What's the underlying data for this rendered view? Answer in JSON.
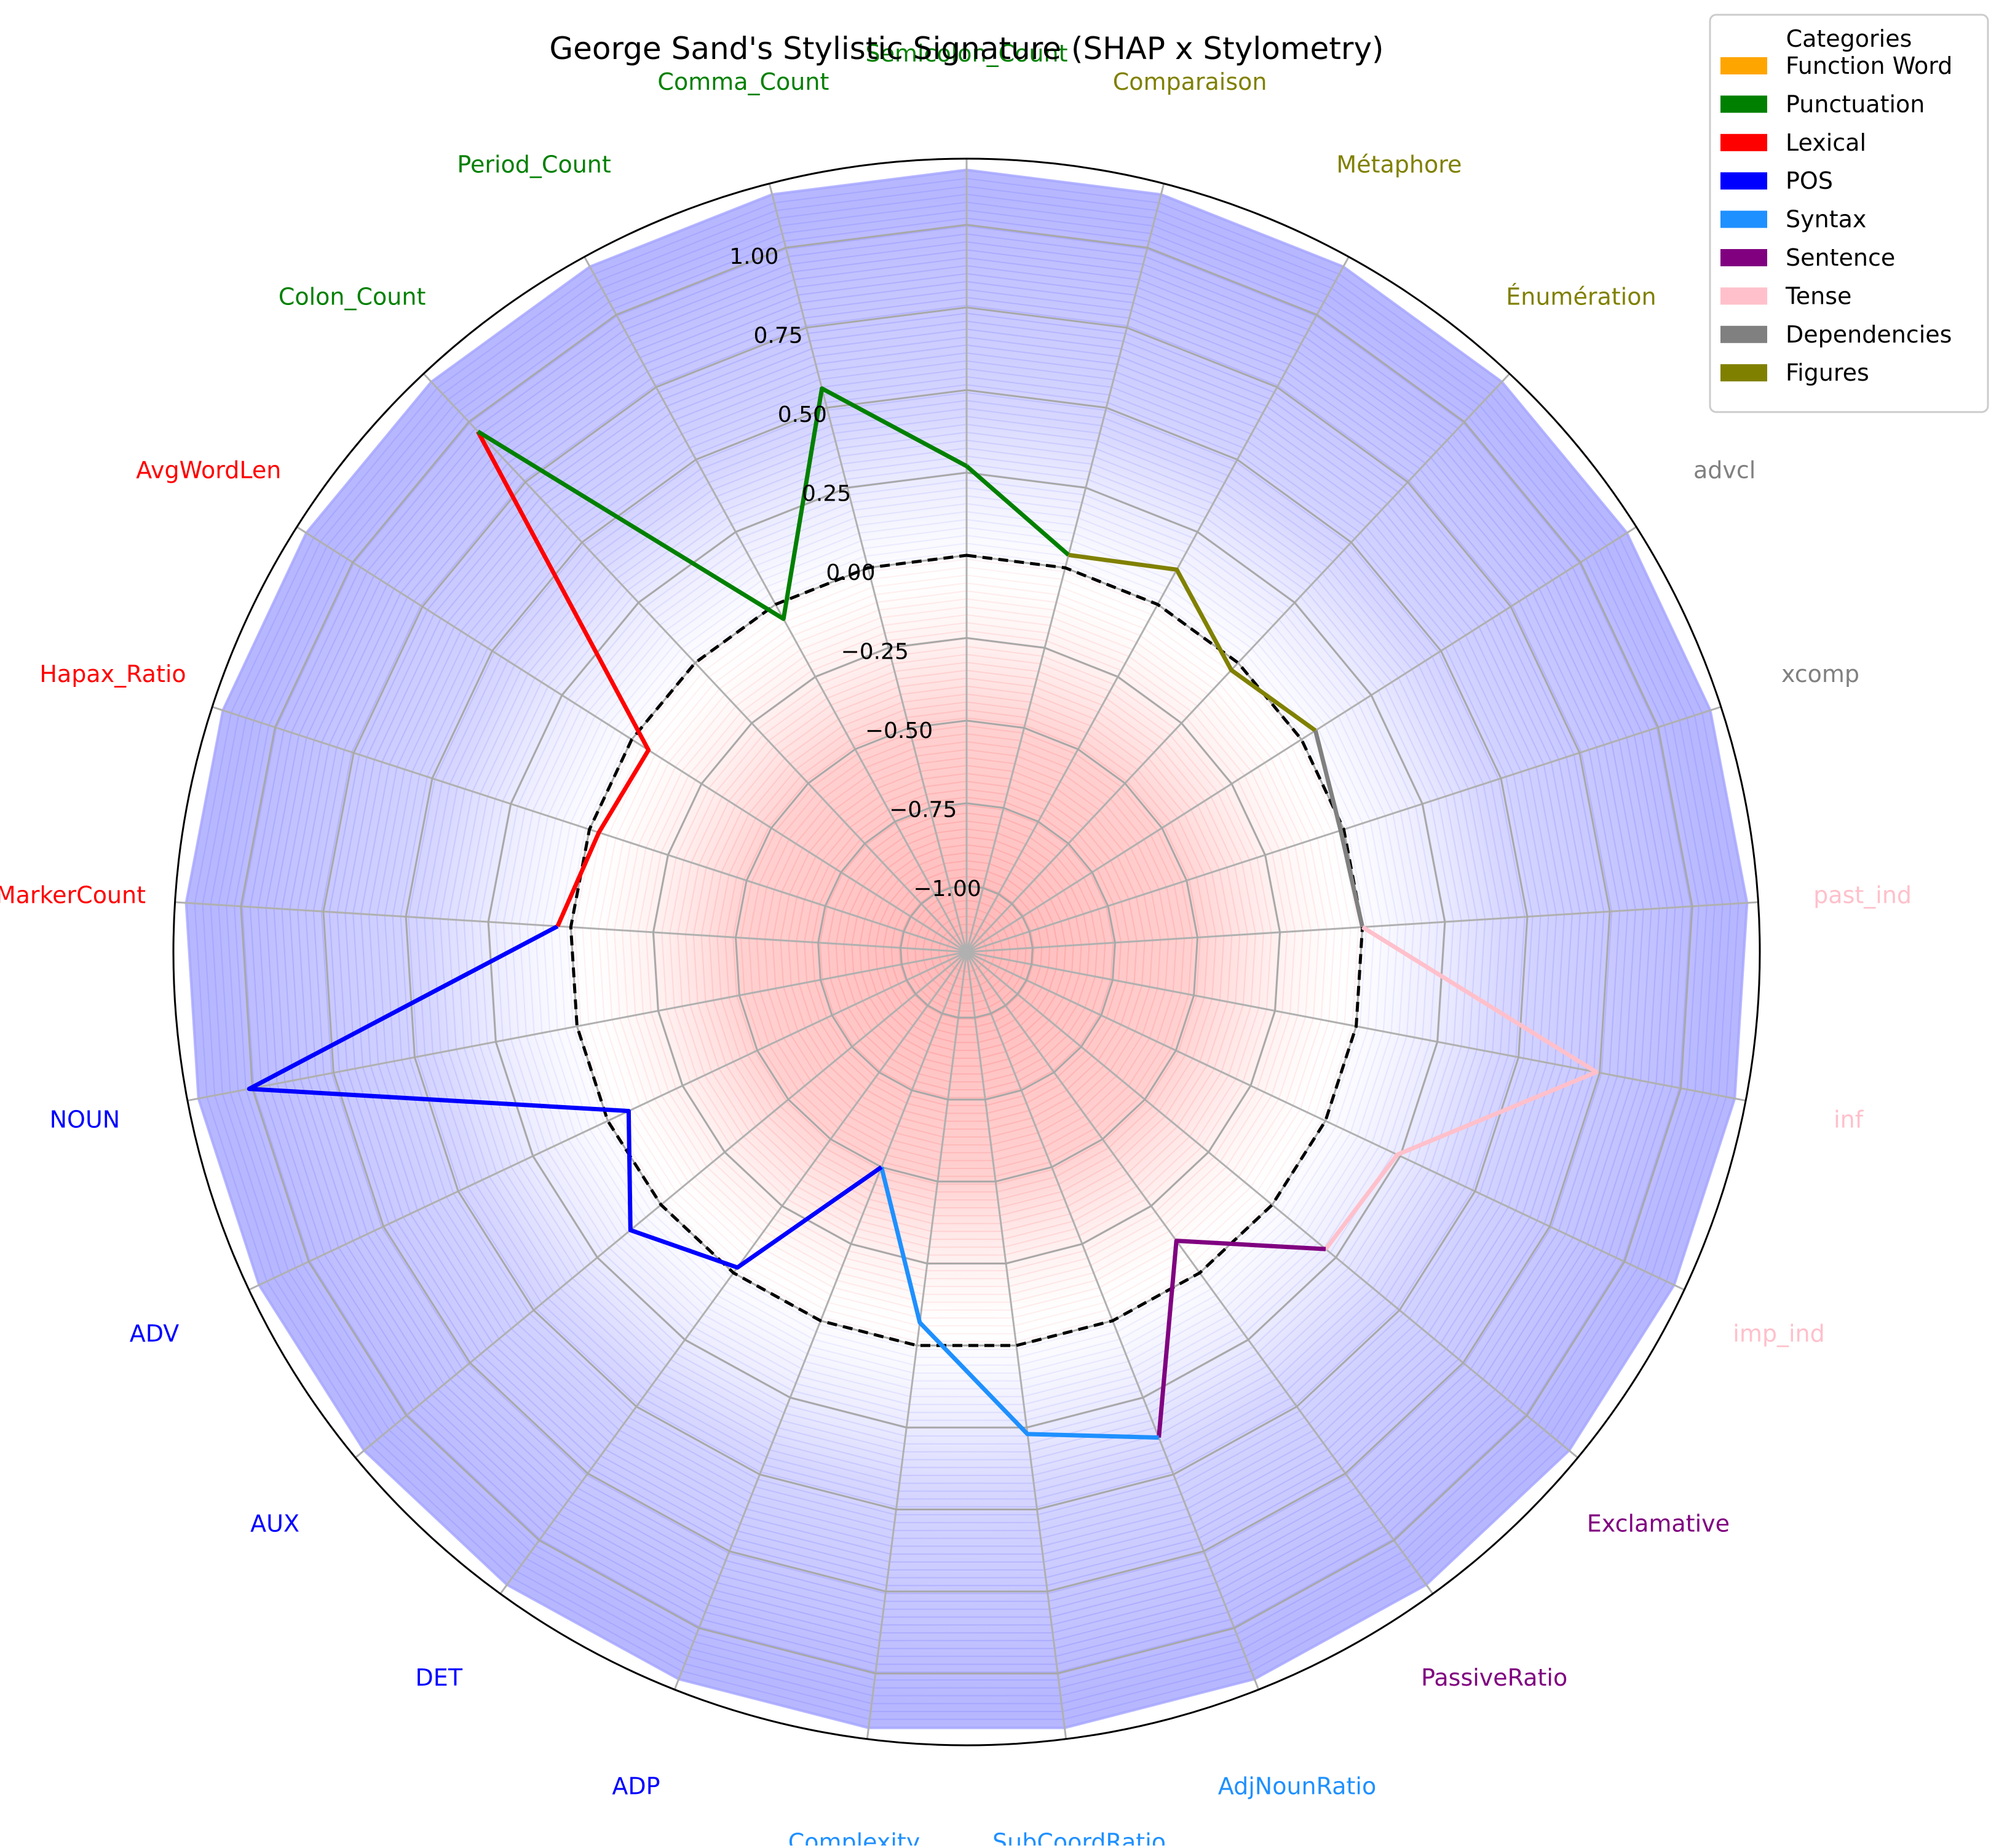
{
  "chart_data": {
    "type": "radar",
    "title": "George Sand's Stylistic Signature (SHAP x Stylometry)",
    "rlim": [
      -1.2,
      1.2
    ],
    "r_ticks": [
      -1.0,
      -0.75,
      -0.5,
      -0.25,
      0.0,
      0.25,
      0.5,
      0.75,
      1.0
    ],
    "r_tick_labels": [
      "−1.00",
      "−0.75",
      "−0.50",
      "−0.25",
      "0.00",
      "0.25",
      "0.50",
      "0.75",
      "1.00"
    ],
    "baseline_value": 0.0,
    "grid": true,
    "background_gradient": {
      "negative_color": "#ff9999",
      "positive_color": "#9999ff"
    },
    "legend": {
      "title": "Categories",
      "placement": "top-right",
      "entries": [
        {
          "name": "Function Word",
          "color": "#ffa500"
        },
        {
          "name": "Punctuation",
          "color": "#008000"
        },
        {
          "name": "Lexical",
          "color": "#ff0000"
        },
        {
          "name": "POS",
          "color": "#0000ff"
        },
        {
          "name": "Syntax",
          "color": "#1e90ff"
        },
        {
          "name": "Sentence",
          "color": "#800080"
        },
        {
          "name": "Tense",
          "color": "#ffc0cb"
        },
        {
          "name": "Dependencies",
          "color": "#808080"
        },
        {
          "name": "Figures",
          "color": "#808000"
        }
      ]
    },
    "axes": [
      {
        "label": "Semicolon_Count",
        "category": "Punctuation",
        "value": 0.27
      },
      {
        "label": "Comparaison",
        "category": "Figures",
        "value": 0.04
      },
      {
        "label": "Métaphore",
        "category": "Figures",
        "value": 0.12
      },
      {
        "label": "Énumération",
        "category": "Figures",
        "value": -0.03
      },
      {
        "label": "advcl",
        "category": "Dependencies",
        "value": 0.05
      },
      {
        "label": "xcomp",
        "category": "Dependencies",
        "value": -0.01
      },
      {
        "label": "past_ind",
        "category": "Tense",
        "value": 0.0
      },
      {
        "label": "inf",
        "category": "Tense",
        "value": 0.74
      },
      {
        "label": "imp_ind",
        "category": "Tense",
        "value": 0.24
      },
      {
        "label": "Exclamative",
        "category": "Sentence",
        "value": 0.21
      },
      {
        "label": "PassiveRatio",
        "category": "Sentence",
        "value": -0.12
      },
      {
        "label": "AdjNounRatio",
        "category": "Syntax",
        "value": 0.38
      },
      {
        "label": "SubCoordRatio",
        "category": "Syntax",
        "value": 0.27
      },
      {
        "label": "Complexity",
        "category": "Syntax",
        "value": -0.07
      },
      {
        "label": "ADP",
        "category": "POS",
        "value": -0.5
      },
      {
        "label": "DET",
        "category": "POS",
        "value": -0.02
      },
      {
        "label": "AUX",
        "category": "POS",
        "value": 0.12
      },
      {
        "label": "ADV",
        "category": "POS",
        "value": -0.07
      },
      {
        "label": "NOUN",
        "category": "POS",
        "value": 1.01
      },
      {
        "label": "MarkerCount",
        "category": "Lexical",
        "value": 0.04
      },
      {
        "label": "Hapax_Ratio",
        "category": "Lexical",
        "value": -0.03
      },
      {
        "label": "AvgWordLen",
        "category": "Lexical",
        "value": -0.06
      },
      {
        "label": "Colon_Count",
        "category": "Punctuation",
        "value": 0.96
      },
      {
        "label": "Period_Count",
        "category": "Punctuation",
        "value": -0.05
      },
      {
        "label": "Comma_Count",
        "category": "Punctuation",
        "value": 0.56
      }
    ]
  }
}
